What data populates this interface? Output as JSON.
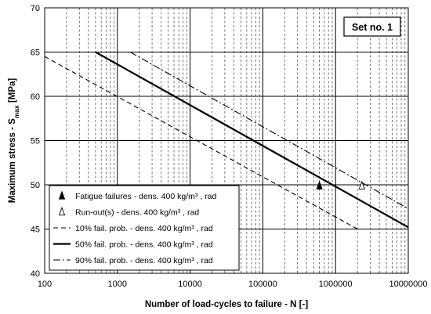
{
  "chart_data": {
    "type": "line",
    "xscale": "log",
    "xlim": [
      100,
      10000000
    ],
    "ylim": [
      40,
      70
    ],
    "x_ticks": [
      "100",
      "1000",
      "10000",
      "100000",
      "1000000",
      "10000000"
    ],
    "y_ticks": [
      "40",
      "45",
      "50",
      "55",
      "60",
      "65",
      "70"
    ],
    "xlabel": "Number of load-cycles to failure - N [-]",
    "ylabel": {
      "main": "Maximum stress - S",
      "sub": "max",
      "unit": " [MPa]"
    },
    "annotation": "Set no. 1",
    "legend_position": "bottom-left",
    "series": [
      {
        "name": "Fatigue failures - dens. 400 kg/m³ , rad",
        "kind": "marker-filled",
        "points": [
          {
            "x": 600000,
            "y": 49.8
          }
        ]
      },
      {
        "name": "Run-out(s) - dens. 400 kg/m³ , rad",
        "kind": "marker-open",
        "points": [
          {
            "x": 2300000,
            "y": 49.8
          }
        ]
      },
      {
        "name": "10% fail. prob. - dens. 400 kg/m³ , rad",
        "kind": "dashed",
        "points": [
          {
            "x": 100,
            "y": 64.5
          },
          {
            "x": 2000000,
            "y": 45.0
          }
        ]
      },
      {
        "name": "50% fail. prob. - dens. 400 kg/m³ , rad",
        "kind": "solid",
        "points": [
          {
            "x": 500,
            "y": 65.0
          },
          {
            "x": 10000000,
            "y": 45.2
          }
        ]
      },
      {
        "name": "90% fail. prob. - dens. 400 kg/m³ , rad",
        "kind": "dashdot",
        "points": [
          {
            "x": 1500,
            "y": 65.0
          },
          {
            "x": 10000000,
            "y": 47.3
          }
        ]
      }
    ]
  }
}
